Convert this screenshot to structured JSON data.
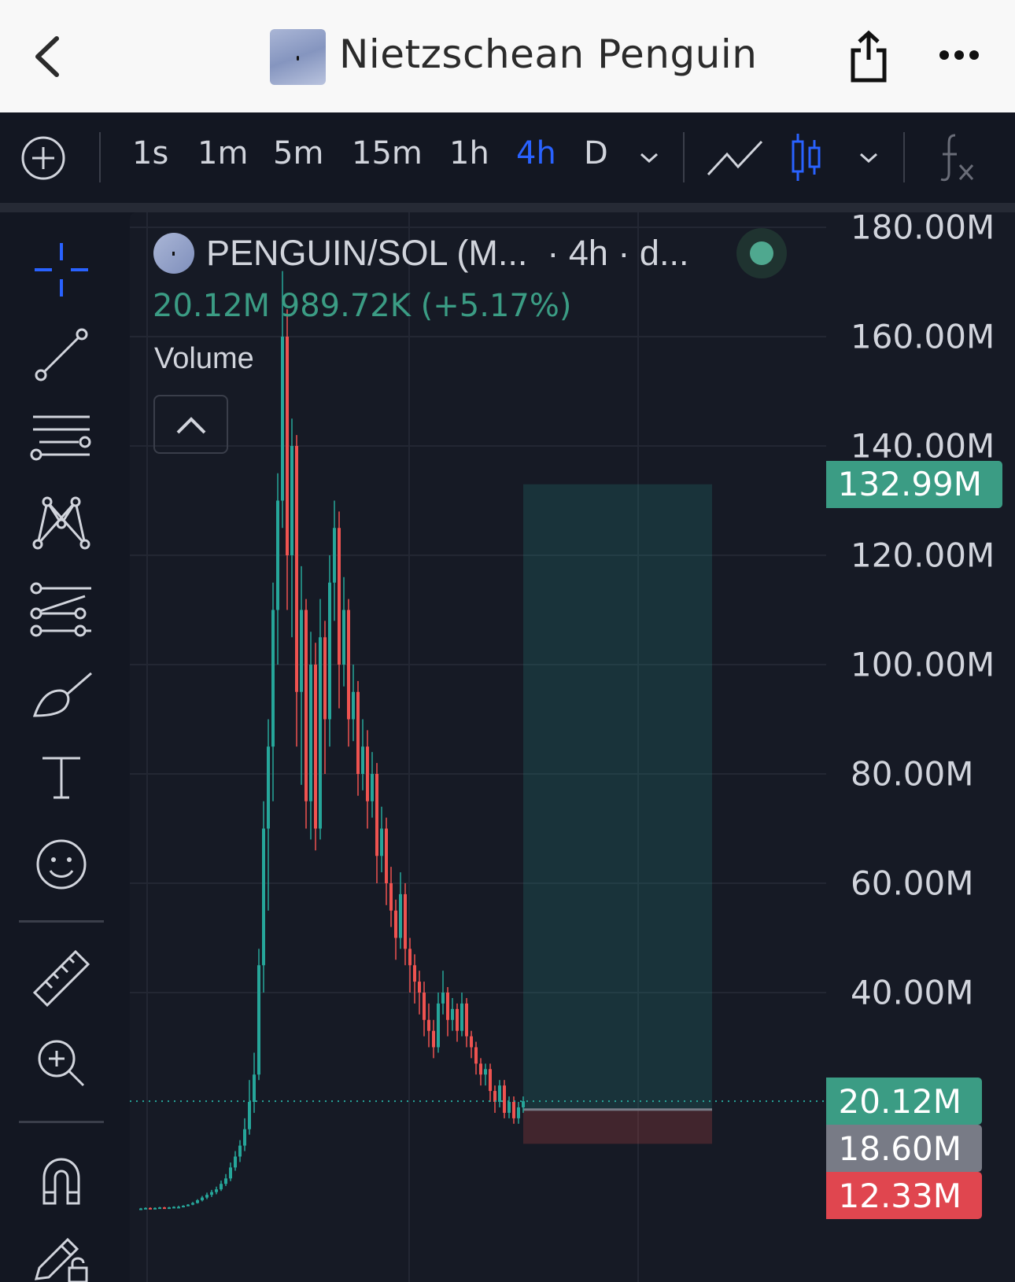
{
  "header": {
    "title": "Nietzschean Penguin",
    "back_icon": "chevron-left-icon",
    "share_icon": "share-icon",
    "more_icon": "more-dots-icon"
  },
  "toolbar": {
    "timeframes": [
      "1s",
      "1m",
      "5m",
      "15m",
      "1h",
      "4h",
      "D"
    ],
    "active_timeframe": "4h",
    "active_color": "#2962ff"
  },
  "legend": {
    "symbol": "PENGUIN/SOL (M...  · 4h · d...",
    "price": "20.12M",
    "change": "989.72K (+5.17%)",
    "indicator": "Volume",
    "status_color": "#4fa88f"
  },
  "chart_data": {
    "type": "candlestick",
    "y_ticks": [
      {
        "v": 180,
        "label": "180.00M"
      },
      {
        "v": 160,
        "label": "160.00M"
      },
      {
        "v": 140,
        "label": "140.00M"
      },
      {
        "v": 120,
        "label": "120.00M"
      },
      {
        "v": 100,
        "label": "100.00M"
      },
      {
        "v": 80,
        "label": "80.00M"
      },
      {
        "v": 60,
        "label": "60.00M"
      },
      {
        "v": 40,
        "label": "40.00M"
      }
    ],
    "unit": "M",
    "up_color": "#26a69a",
    "down_color": "#ef5350",
    "candles": [
      [
        0.5,
        0.6,
        0.4,
        0.5
      ],
      [
        0.5,
        0.7,
        0.4,
        0.6
      ],
      [
        0.6,
        0.7,
        0.4,
        0.5
      ],
      [
        0.5,
        0.7,
        0.5,
        0.6
      ],
      [
        0.6,
        0.8,
        0.5,
        0.7
      ],
      [
        0.7,
        0.8,
        0.5,
        0.6
      ],
      [
        0.6,
        0.8,
        0.5,
        0.7
      ],
      [
        0.7,
        0.9,
        0.6,
        0.8
      ],
      [
        0.8,
        1.0,
        0.7,
        0.8
      ],
      [
        0.8,
        1.1,
        0.7,
        1.0
      ],
      [
        1.0,
        1.3,
        0.9,
        1.2
      ],
      [
        1.2,
        1.7,
        1.1,
        1.5
      ],
      [
        1.5,
        2.2,
        1.4,
        2.0
      ],
      [
        2.0,
        2.8,
        1.8,
        2.5
      ],
      [
        2.5,
        3.4,
        2.2,
        3.0
      ],
      [
        3.0,
        3.9,
        2.6,
        3.5
      ],
      [
        3.5,
        4.5,
        3.1,
        4.0
      ],
      [
        4.0,
        5.6,
        3.7,
        5.0
      ],
      [
        5.0,
        6.8,
        4.6,
        6.0
      ],
      [
        6.0,
        8.9,
        5.5,
        8.0
      ],
      [
        8,
        11,
        7.4,
        10
      ],
      [
        10,
        13,
        9,
        12
      ],
      [
        12,
        17,
        11,
        15
      ],
      [
        15,
        24,
        14,
        20
      ],
      [
        20,
        29,
        18,
        25
      ],
      [
        25,
        48,
        24,
        45
      ],
      [
        45,
        75,
        40,
        70
      ],
      [
        70,
        90,
        55,
        85
      ],
      [
        85,
        115,
        75,
        110
      ],
      [
        110,
        135,
        100,
        130
      ],
      [
        130,
        172,
        125,
        160
      ],
      [
        160,
        165,
        110,
        120
      ],
      [
        120,
        145,
        105,
        140
      ],
      [
        140,
        142,
        85,
        95
      ],
      [
        95,
        118,
        78,
        110
      ],
      [
        110,
        112,
        70,
        75
      ],
      [
        75,
        106,
        68,
        100
      ],
      [
        100,
        104,
        66,
        70
      ],
      [
        70,
        112,
        68,
        105
      ],
      [
        105,
        108,
        80,
        90
      ],
      [
        90,
        120,
        85,
        115
      ],
      [
        115,
        130,
        108,
        125
      ],
      [
        125,
        128,
        92,
        100
      ],
      [
        100,
        116,
        96,
        110
      ],
      [
        110,
        112,
        85,
        90
      ],
      [
        90,
        100,
        86,
        95
      ],
      [
        95,
        97,
        76,
        80
      ],
      [
        80,
        90,
        77,
        85
      ],
      [
        85,
        88,
        70,
        75
      ],
      [
        75,
        84,
        72,
        80
      ],
      [
        80,
        82,
        60,
        65
      ],
      [
        65,
        74,
        62,
        70
      ],
      [
        70,
        72,
        56,
        60
      ],
      [
        60,
        63,
        52,
        55
      ],
      [
        55,
        57,
        46,
        50
      ],
      [
        50,
        62,
        48,
        58
      ],
      [
        58,
        60,
        45,
        48
      ],
      [
        48,
        50,
        40,
        45
      ],
      [
        45,
        47,
        38,
        42
      ],
      [
        42,
        44,
        36,
        40
      ],
      [
        40,
        42,
        32,
        35
      ],
      [
        35,
        38,
        30,
        33
      ],
      [
        33,
        35,
        28,
        30
      ],
      [
        30,
        40,
        29,
        38
      ],
      [
        38,
        44,
        36,
        40
      ],
      [
        40,
        41,
        32,
        35
      ],
      [
        35,
        39,
        33,
        37
      ],
      [
        37,
        38,
        31,
        33
      ],
      [
        33,
        40,
        32,
        38
      ],
      [
        38,
        39,
        30,
        32
      ],
      [
        32,
        33,
        28,
        30
      ],
      [
        30,
        31,
        25,
        27
      ],
      [
        27,
        28,
        23,
        25
      ],
      [
        25,
        27,
        23,
        26
      ],
      [
        26,
        27,
        20,
        22
      ],
      [
        22,
        23,
        18,
        20
      ],
      [
        20,
        24,
        19,
        23
      ],
      [
        23,
        24,
        17,
        18
      ],
      [
        18,
        21,
        17,
        20
      ],
      [
        20,
        21,
        16,
        17
      ],
      [
        17,
        20,
        16,
        19
      ],
      [
        19,
        21,
        18,
        20.12
      ]
    ],
    "long_position": {
      "target": 132.99,
      "entry": 18.6,
      "stop": 12.33
    },
    "last_price": 20.12,
    "price_tags": [
      {
        "label": "132.99M",
        "color": "#3b9c84"
      },
      {
        "label": "20.12M",
        "color": "#3b9c84"
      },
      {
        "label": "18.60M",
        "color": "#787b86"
      },
      {
        "label": "12.33M",
        "color": "#e0464f"
      }
    ]
  }
}
